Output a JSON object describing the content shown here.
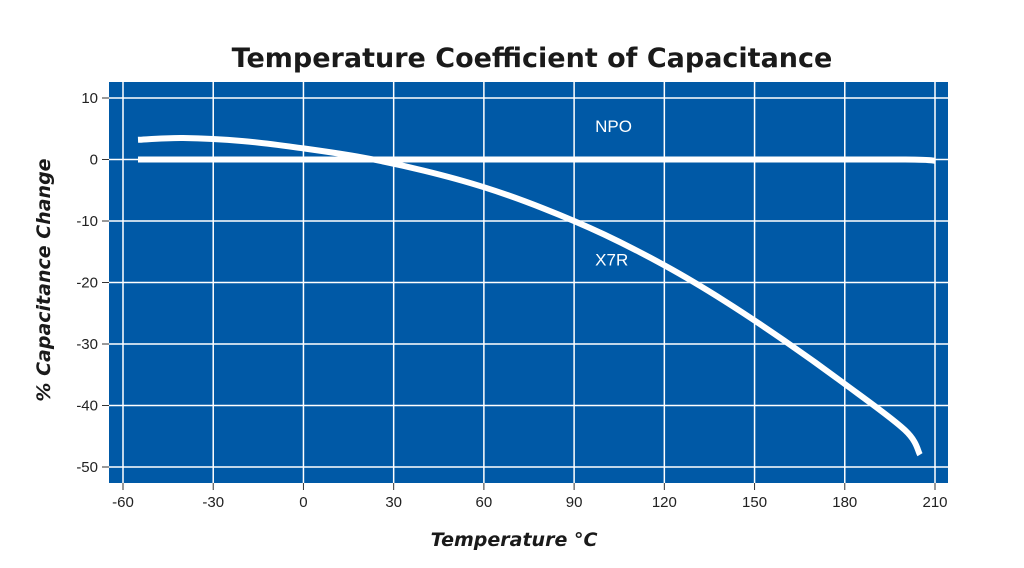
{
  "chart_data": {
    "type": "line",
    "title": "Temperature Coefficient of Capacitance",
    "xlabel": "Temperature °C",
    "ylabel": "% Capacitance Change",
    "xlim": [
      -60,
      210
    ],
    "ylim": [
      -50,
      10
    ],
    "x_ticks": [
      -60,
      -30,
      0,
      30,
      60,
      90,
      120,
      150,
      180,
      210
    ],
    "y_ticks": [
      10,
      0,
      -10,
      -20,
      -30,
      -40,
      -50
    ],
    "grid": true,
    "series": [
      {
        "name": "NPO",
        "x": [
          -55,
          0,
          50,
          100,
          150,
          200,
          210
        ],
        "y": [
          0,
          0,
          0,
          0,
          0,
          0,
          -0.2
        ]
      },
      {
        "name": "X7R",
        "x": [
          -55,
          -40,
          -20,
          0,
          20,
          40,
          60,
          80,
          100,
          120,
          140,
          160,
          180,
          200,
          205
        ],
        "y": [
          3.2,
          3.5,
          3.0,
          1.8,
          0.3,
          -1.8,
          -4.5,
          -8,
          -12.2,
          -17.2,
          -23,
          -29.5,
          -36.5,
          -44,
          -48
        ]
      }
    ],
    "colors": {
      "plot_background": "#0059a6",
      "grid": "#ffffff",
      "line": "#ffffff",
      "text": "#1a1a1a"
    }
  }
}
